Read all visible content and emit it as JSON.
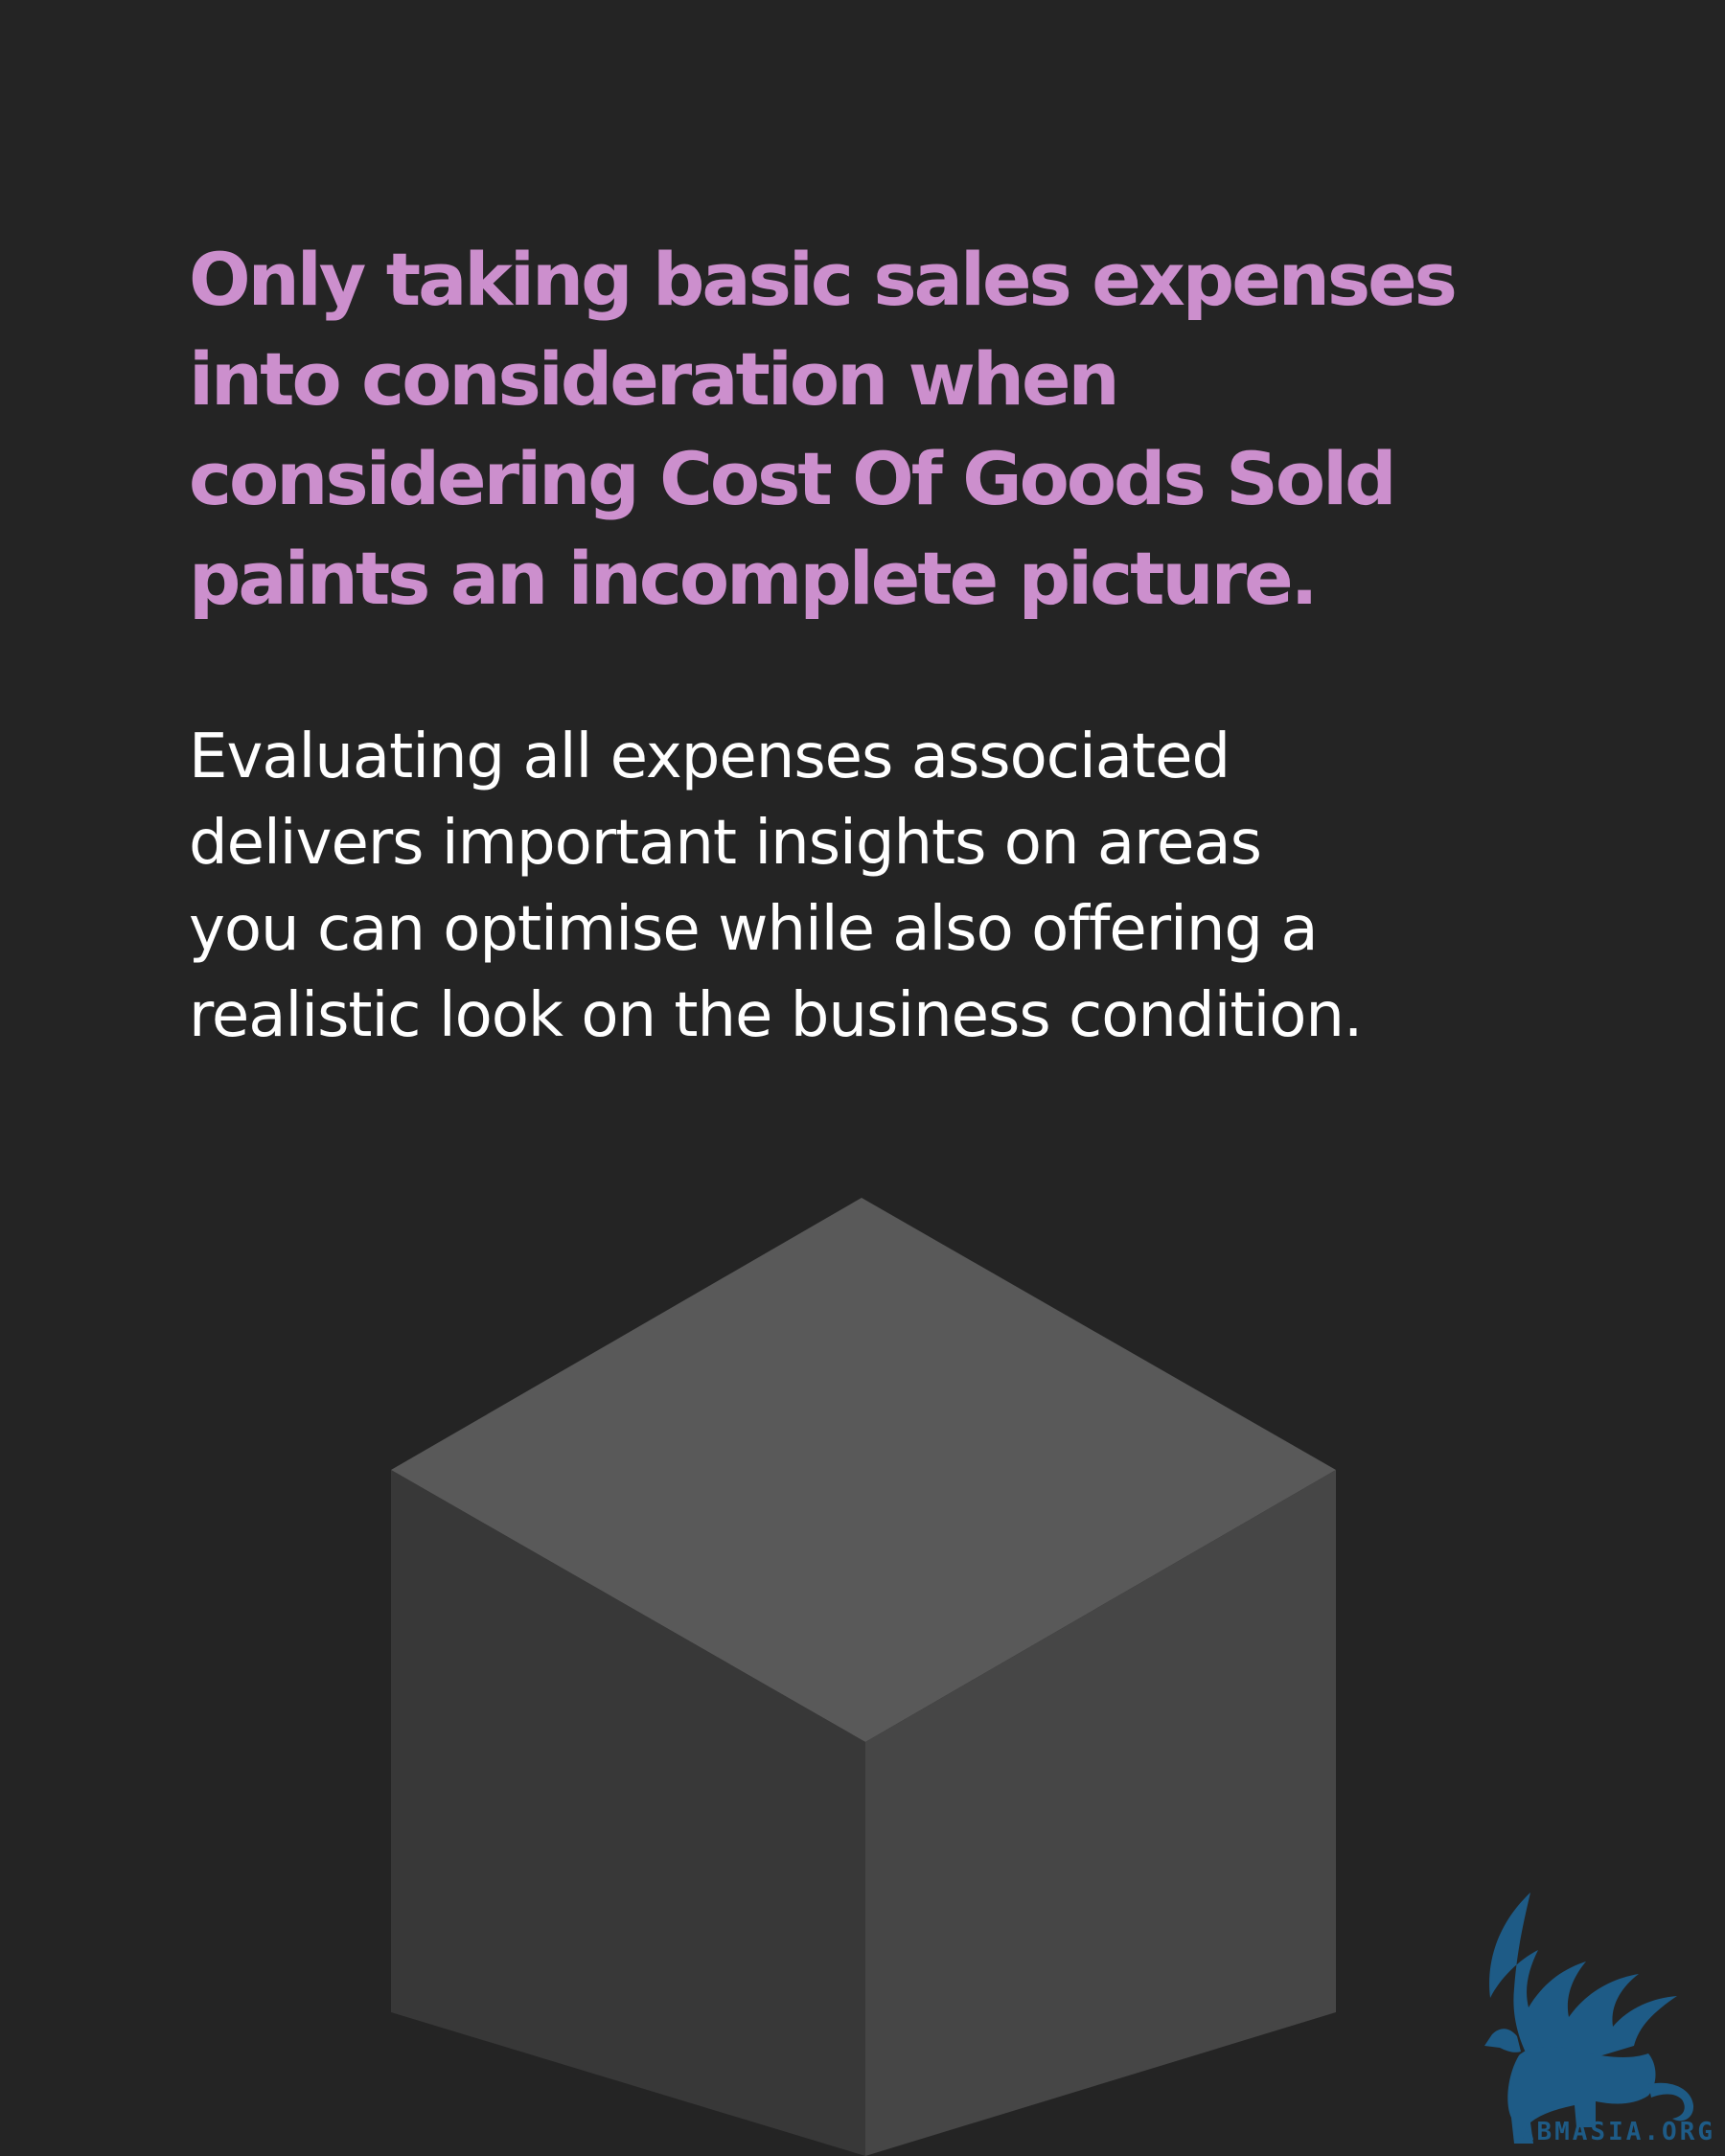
{
  "headline": {
    "lines": [
      "Only taking basic sales expenses",
      "into consideration when",
      "considering Cost Of Goods Sold",
      "paints an incomplete picture."
    ],
    "color": "#cc8fcd"
  },
  "body": {
    "lines": [
      "Evaluating all expenses associated",
      "delivers important insights on areas",
      "you can optimise while also offering a",
      "realistic look on the business condition."
    ],
    "color": "#ffffff"
  },
  "graphic": {
    "type": "cube-icon",
    "top_face_color": "#595959",
    "left_face_color": "#383838",
    "right_face_color": "#464646"
  },
  "logo": {
    "text": "ABMASIA.ORG",
    "color": "#1e5b86",
    "icon": "griffin-icon"
  },
  "background_color": "#242424"
}
